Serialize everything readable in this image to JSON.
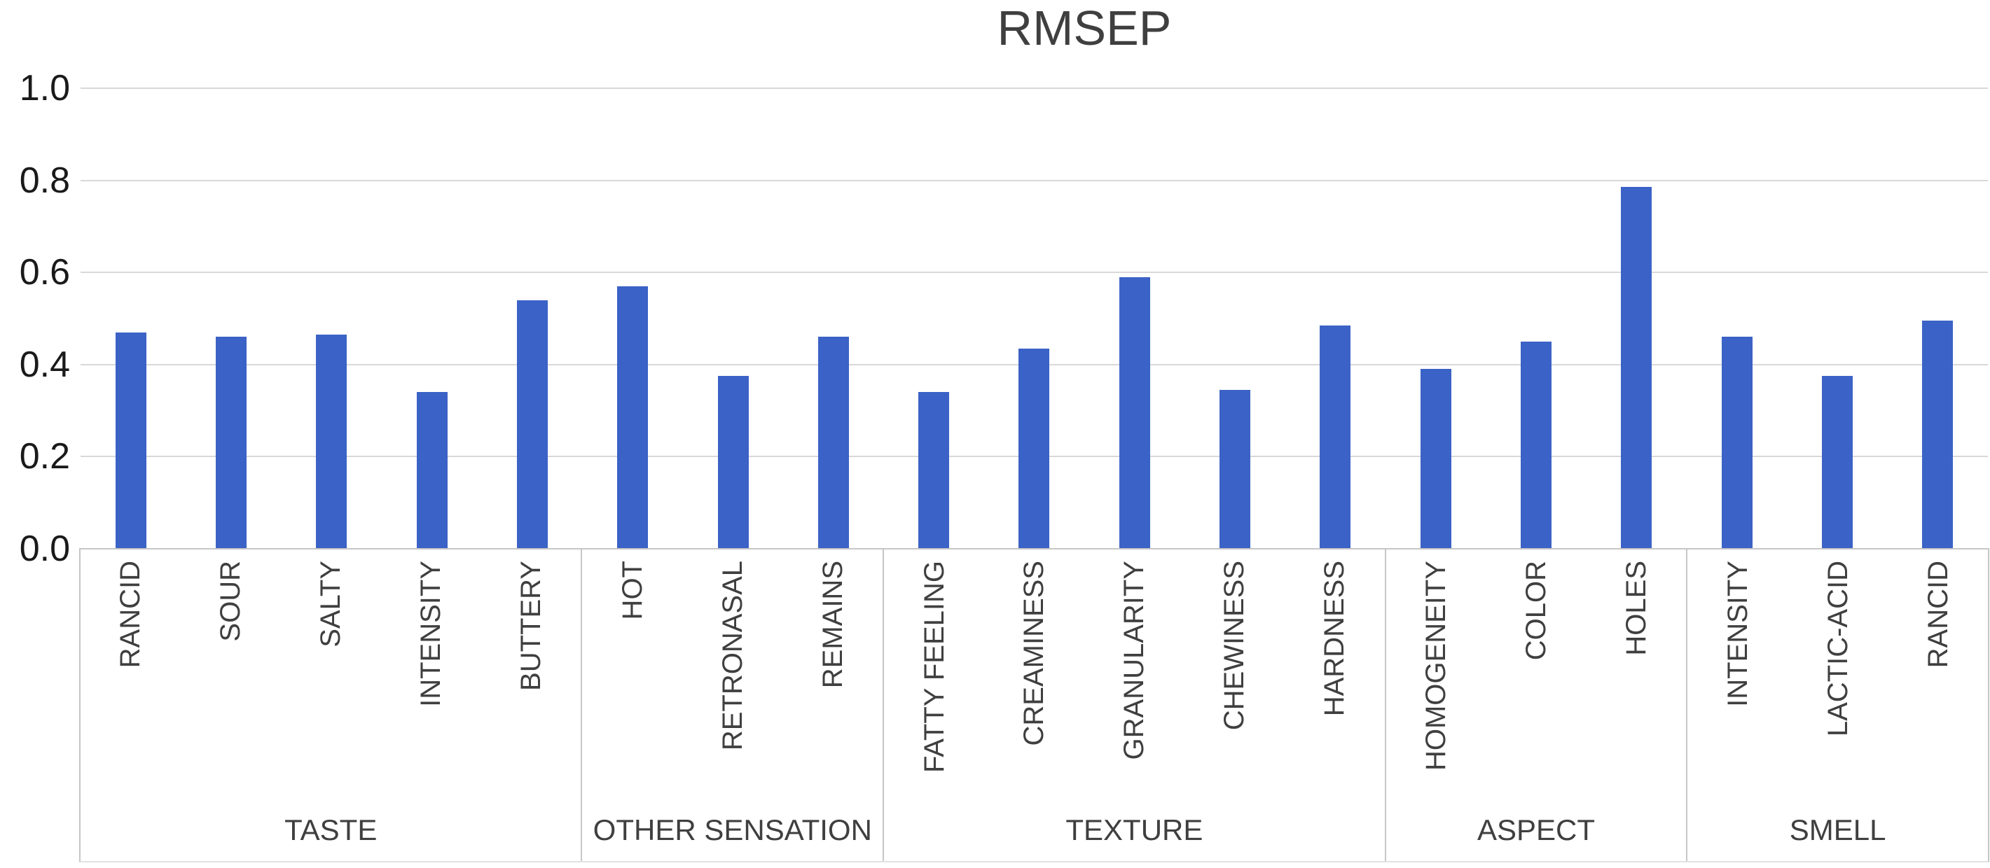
{
  "chart_data": {
    "type": "bar",
    "title": "RMSEP",
    "xlabel": "",
    "ylabel": "",
    "ylim": [
      0,
      1.0
    ],
    "yticks": [
      0,
      0.2,
      0.4,
      0.6,
      0.8,
      1.0
    ],
    "ytick_labels": [
      "0.0",
      "0.2",
      "0.4",
      "0.6",
      "0.8",
      "1.0"
    ],
    "grid": true,
    "legend": false,
    "bar_color": "#3b62c6",
    "groups": [
      {
        "label": "TASTE",
        "categories": [
          "RANCID",
          "SOUR",
          "SALTY",
          "INTENSITY",
          "BUTTERY"
        ],
        "values": [
          0.47,
          0.46,
          0.465,
          0.34,
          0.54
        ]
      },
      {
        "label": "OTHER SENSATION",
        "categories": [
          "HOT",
          "RETRONASAL",
          "REMAINS"
        ],
        "values": [
          0.57,
          0.375,
          0.46
        ]
      },
      {
        "label": "TEXTURE",
        "categories": [
          "FATTY FEELING",
          "CREAMINESS",
          "GRANULARITY",
          "CHEWINESS",
          "HARDNESS"
        ],
        "values": [
          0.34,
          0.435,
          0.59,
          0.345,
          0.485
        ]
      },
      {
        "label": "ASPECT",
        "categories": [
          "HOMOGENEITY",
          "COLOR",
          "HOLES"
        ],
        "values": [
          0.39,
          0.45,
          0.785
        ]
      },
      {
        "label": "SMELL",
        "categories": [
          "INTENSITY",
          "LACTIC-ACID",
          "RANCID"
        ],
        "values": [
          0.46,
          0.375,
          0.495
        ]
      }
    ]
  }
}
